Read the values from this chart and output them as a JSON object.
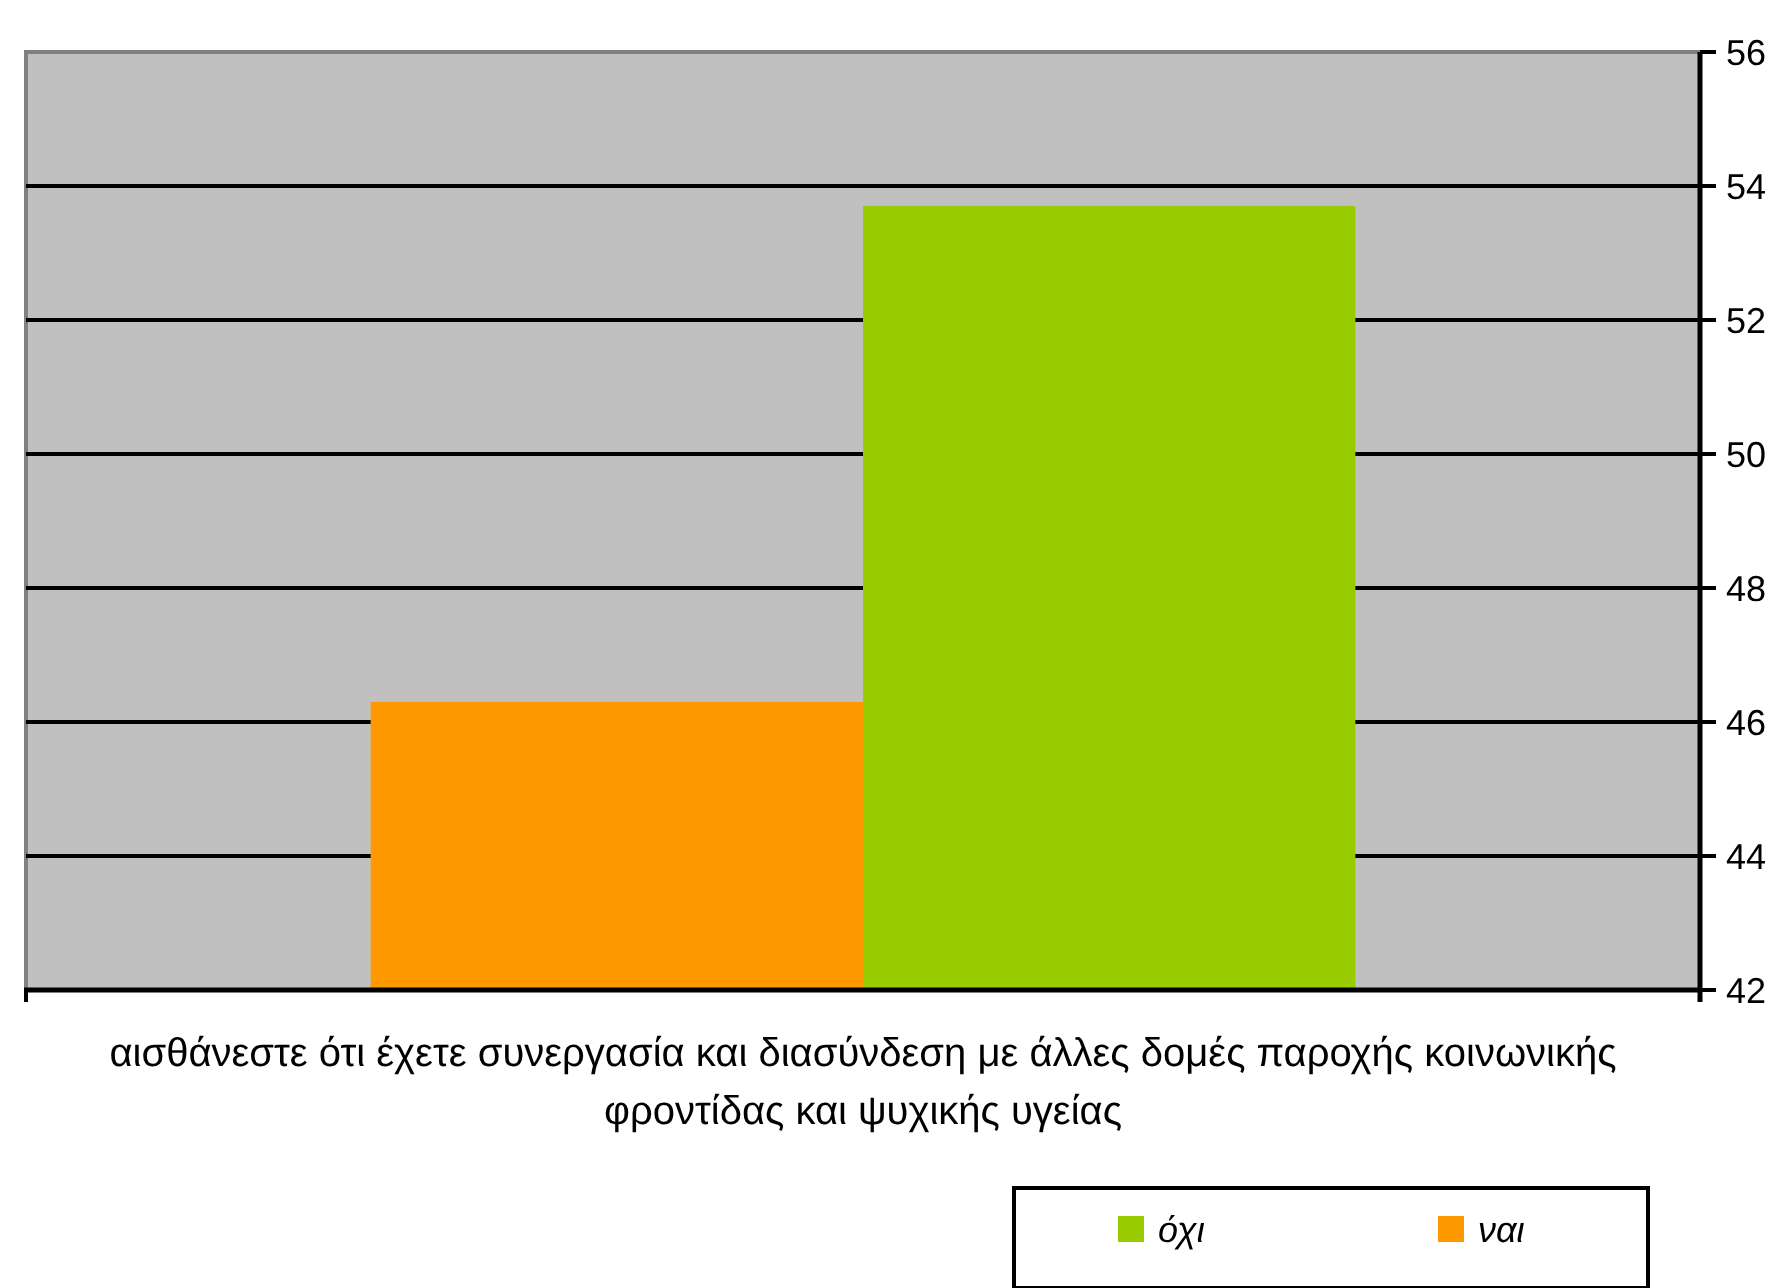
{
  "chart_data": {
    "type": "bar",
    "categories": [
      "αισθάνεστε ότι έχετε συνεργασία και διασύνδεση με άλλες δομές παροχής κοινωνικής φροντίδας και ψυχικής υγείας"
    ],
    "series": [
      {
        "name": "ναι",
        "color": "#ff9900",
        "values": [
          46.3
        ]
      },
      {
        "name": "όχι",
        "color": "#99cc00",
        "values": [
          53.7
        ]
      }
    ],
    "ylim": [
      42,
      56
    ],
    "yticks": [
      42,
      44,
      46,
      48,
      50,
      52,
      54,
      56
    ],
    "grid": "y",
    "legend": "bottom right"
  }
}
